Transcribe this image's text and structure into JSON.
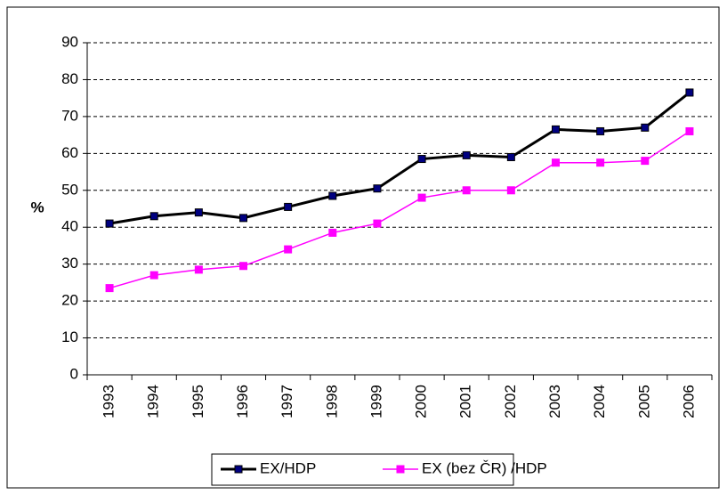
{
  "chart_data": {
    "type": "line",
    "y_label": "%",
    "categories": [
      "1993",
      "1994",
      "1995",
      "1996",
      "1997",
      "1998",
      "1999",
      "2000",
      "2001",
      "2002",
      "2003",
      "2004",
      "2005",
      "2006"
    ],
    "series": [
      {
        "name": "EX/HDP",
        "color": "#000000",
        "marker_color": "#000080",
        "values": [
          41,
          43,
          44,
          42.5,
          45.5,
          48.5,
          50.5,
          58.5,
          59.5,
          59,
          66.5,
          66,
          67,
          76.5
        ]
      },
      {
        "name": "EX (bez ČR) /HDP",
        "color": "#ff00ff",
        "marker_color": "#ff00ff",
        "values": [
          23.5,
          27,
          28.5,
          29.5,
          34,
          38.5,
          41,
          48,
          50,
          50,
          57.5,
          57.5,
          58,
          66
        ]
      }
    ],
    "ylim": [
      0,
      90
    ],
    "yticks": [
      0,
      10,
      20,
      30,
      40,
      50,
      60,
      70,
      80,
      90
    ],
    "grid": true,
    "legend": "bottom"
  }
}
